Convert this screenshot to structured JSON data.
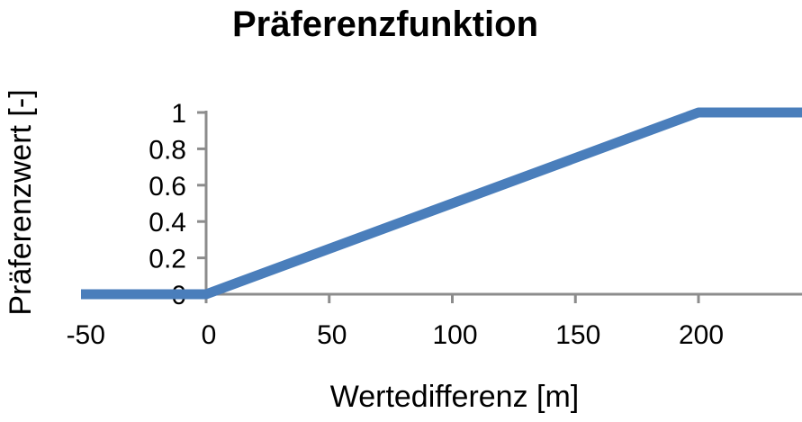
{
  "chart_data": {
    "type": "line",
    "title": "Präferenzfunktion",
    "xlabel": "Wertedifferenz [m]",
    "ylabel": "Präferenzwert [-]",
    "xlim": [
      -50,
      240
    ],
    "ylim": [
      0,
      1
    ],
    "x_ticks": [
      -50,
      0,
      50,
      100,
      150,
      200
    ],
    "x_tick_labels": [
      "-50",
      "0",
      "50",
      "100",
      "150",
      "200"
    ],
    "y_ticks": [
      0,
      0.2,
      0.4,
      0.6,
      0.8,
      1
    ],
    "y_tick_labels": [
      "0",
      "0.2",
      "0.4",
      "0.6",
      "0.8",
      "1"
    ],
    "grid": false,
    "series": [
      {
        "color": "#4a7ebb",
        "x": [
          -50,
          0,
          200,
          240
        ],
        "y": [
          0,
          0,
          1,
          1
        ]
      }
    ]
  }
}
